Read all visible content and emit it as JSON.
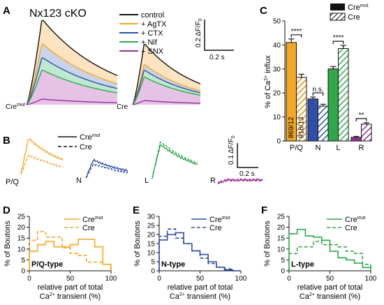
{
  "colors": {
    "black": "#111111",
    "pq": "#f5a623",
    "pq_dark": "#e68a00",
    "n": "#2f4fa8",
    "l": "#2ea84a",
    "r": "#9b2d9b",
    "fill_pq": "#fde3bf",
    "fill_n": "#c9d3ec",
    "fill_l": "#bfe8cf",
    "fill_r": "#e6c3e6"
  },
  "panelA": {
    "letter": "A",
    "title": "Nx123 cKO",
    "legend": [
      "control",
      "+ AgTX",
      "+ CTX",
      "+ Nif",
      "+ SNX"
    ],
    "label_left_main": "Cre",
    "label_left_sup": "mut",
    "label_right": "Cre",
    "scale_y": "0.2 ΔF/F",
    "scale_y_sub": "0",
    "scale_x": "0.2 s"
  },
  "panelB": {
    "letter": "B",
    "legend_solid_main": "Cre",
    "legend_solid_sup": "mut",
    "legend_dashed": "Cre",
    "labels": [
      "P/Q",
      "N",
      "L",
      "R"
    ],
    "scale_y": "0.1 ΔF/F",
    "scale_y_sub": "0",
    "scale_x": "0.2 s"
  },
  "panelD": {
    "letter": "D",
    "type_label": "P/Q-type"
  },
  "panelE": {
    "letter": "E",
    "type_label": "N-type"
  },
  "panelF": {
    "letter": "F",
    "type_label": "L-type"
  },
  "hist_common": {
    "ylabel": "% of Boutons",
    "xlabel_line1": "relative part of total",
    "xlabel_line2_a": "Ca",
    "xlabel_line2_sup": "2+",
    "xlabel_line2_b": " transient (%)",
    "legend_solid_main": "Cre",
    "legend_solid_sup": "mut",
    "legend_dashed": "Cre"
  },
  "panelC": {
    "letter": "C",
    "legend_solid_main": "Cre",
    "legend_solid_sup": "mut",
    "legend_hatched": "Cre",
    "ylabel_a": "% of Ca",
    "ylabel_sup": "2+",
    "ylabel_b": " influx",
    "n_labels": [
      "869/12",
      "916/13"
    ],
    "significance": [
      "****",
      "n.s.",
      "****",
      "**"
    ]
  },
  "chart_data": [
    {
      "type": "bar",
      "panel": "C",
      "categories": [
        "P/Q",
        "N",
        "L",
        "R"
      ],
      "series": [
        {
          "name": "Cre mut",
          "values": [
            41,
            17.5,
            30,
            1.5
          ],
          "errors": [
            1.5,
            0.8,
            1.0,
            0.4
          ]
        },
        {
          "name": "Cre",
          "values": [
            26.5,
            14.5,
            38.5,
            7
          ],
          "errors": [
            1.3,
            0.8,
            1.3,
            0.6
          ]
        }
      ],
      "ylim": [
        0,
        50
      ],
      "yticks": [
        0,
        10,
        20,
        30,
        40,
        50
      ],
      "grid": false,
      "legend": "top-right"
    },
    {
      "type": "line",
      "panel": "D",
      "x_bins": [
        0,
        10,
        20,
        30,
        40,
        50,
        60,
        70,
        80,
        90,
        100
      ],
      "series": [
        {
          "name": "Cre mut",
          "values": [
            9,
            12,
            13.5,
            11,
            11,
            12,
            14.5,
            14.5,
            11,
            3
          ]
        },
        {
          "name": "Cre",
          "values": [
            14,
            18,
            15.5,
            15.5,
            10.5,
            8,
            7,
            4,
            4,
            3
          ]
        }
      ],
      "xlim": [
        0,
        100
      ],
      "xticks": [
        0,
        50,
        100
      ],
      "ylim": [
        0,
        25
      ],
      "yticks": [
        0,
        5,
        10,
        15,
        20,
        25
      ],
      "legend": "top-right"
    },
    {
      "type": "line",
      "panel": "E",
      "x_bins": [
        0,
        10,
        20,
        30,
        40,
        50,
        60,
        70,
        80,
        90,
        100
      ],
      "series": [
        {
          "name": "Cre mut",
          "values": [
            17,
            20,
            21,
            15,
            11,
            9,
            5,
            2,
            0.5,
            0
          ]
        },
        {
          "name": "Cre",
          "values": [
            19,
            23,
            18,
            15,
            11,
            7,
            4,
            2,
            1,
            0
          ]
        }
      ],
      "xlim": [
        0,
        100
      ],
      "xticks": [
        0,
        50,
        100
      ],
      "ylim": [
        0,
        30
      ],
      "yticks": [
        0,
        5,
        10,
        15,
        20,
        25,
        30
      ],
      "legend": "top-right"
    },
    {
      "type": "line",
      "panel": "F",
      "x_bins": [
        0,
        10,
        20,
        30,
        40,
        50,
        60,
        70,
        80,
        90,
        100
      ],
      "series": [
        {
          "name": "Cre mut",
          "values": [
            17,
            19,
            16,
            15.5,
            14,
            9,
            6,
            5,
            3.5,
            1.5
          ]
        },
        {
          "name": "Cre",
          "values": [
            8,
            11,
            11,
            13.5,
            12,
            12,
            11,
            9,
            8,
            3
          ]
        }
      ],
      "xlim": [
        0,
        100
      ],
      "xticks": [
        0,
        50,
        100
      ],
      "ylim": [
        0,
        25
      ],
      "yticks": [
        0,
        5,
        10,
        15,
        20,
        25
      ],
      "legend": "top-right"
    }
  ]
}
